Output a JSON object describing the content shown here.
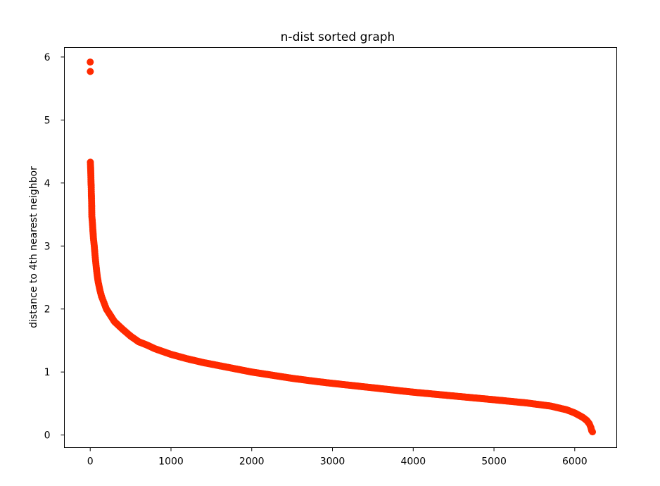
{
  "chart_data": {
    "type": "scatter",
    "title": "n-dist sorted graph",
    "xlabel": "",
    "ylabel": "distance to 4th nearest neighbor",
    "xlim": [
      -320,
      6520
    ],
    "ylim": [
      -0.2,
      6.15
    ],
    "xticks": [
      0,
      1000,
      2000,
      3000,
      4000,
      5000,
      6000
    ],
    "yticks": [
      0,
      1,
      2,
      3,
      4,
      5,
      6
    ],
    "grid": false,
    "legend": "none",
    "color": "#ff2a00",
    "series": [
      {
        "values_note": "",
        "points": [
          [
            0,
            5.92
          ],
          [
            1,
            5.77
          ],
          [
            2,
            4.33
          ],
          [
            4,
            4.27
          ],
          [
            6,
            4.2
          ],
          [
            8,
            4.12
          ],
          [
            10,
            4.0
          ],
          [
            12,
            3.96
          ],
          [
            14,
            3.83
          ],
          [
            16,
            3.75
          ],
          [
            18,
            3.65
          ],
          [
            20,
            3.47
          ],
          [
            24,
            3.42
          ],
          [
            28,
            3.35
          ],
          [
            32,
            3.27
          ],
          [
            36,
            3.2
          ],
          [
            40,
            3.12
          ],
          [
            50,
            3.0
          ],
          [
            60,
            2.85
          ],
          [
            70,
            2.72
          ],
          [
            80,
            2.6
          ],
          [
            90,
            2.5
          ],
          [
            100,
            2.42
          ],
          [
            120,
            2.3
          ],
          [
            140,
            2.2
          ],
          [
            170,
            2.1
          ],
          [
            200,
            2.0
          ],
          [
            250,
            1.9
          ],
          [
            300,
            1.8
          ],
          [
            400,
            1.68
          ],
          [
            500,
            1.57
          ],
          [
            600,
            1.48
          ],
          [
            700,
            1.43
          ],
          [
            800,
            1.37
          ],
          [
            1000,
            1.28
          ],
          [
            1200,
            1.21
          ],
          [
            1400,
            1.15
          ],
          [
            1600,
            1.1
          ],
          [
            1800,
            1.05
          ],
          [
            2000,
            1.0
          ],
          [
            2200,
            0.96
          ],
          [
            2500,
            0.9
          ],
          [
            2800,
            0.85
          ],
          [
            3000,
            0.82
          ],
          [
            3500,
            0.75
          ],
          [
            4000,
            0.68
          ],
          [
            4500,
            0.62
          ],
          [
            5000,
            0.56
          ],
          [
            5400,
            0.51
          ],
          [
            5700,
            0.46
          ],
          [
            5900,
            0.4
          ],
          [
            6000,
            0.35
          ],
          [
            6100,
            0.28
          ],
          [
            6150,
            0.23
          ],
          [
            6180,
            0.18
          ],
          [
            6200,
            0.12
          ],
          [
            6210,
            0.07
          ],
          [
            6220,
            0.05
          ]
        ]
      }
    ]
  }
}
